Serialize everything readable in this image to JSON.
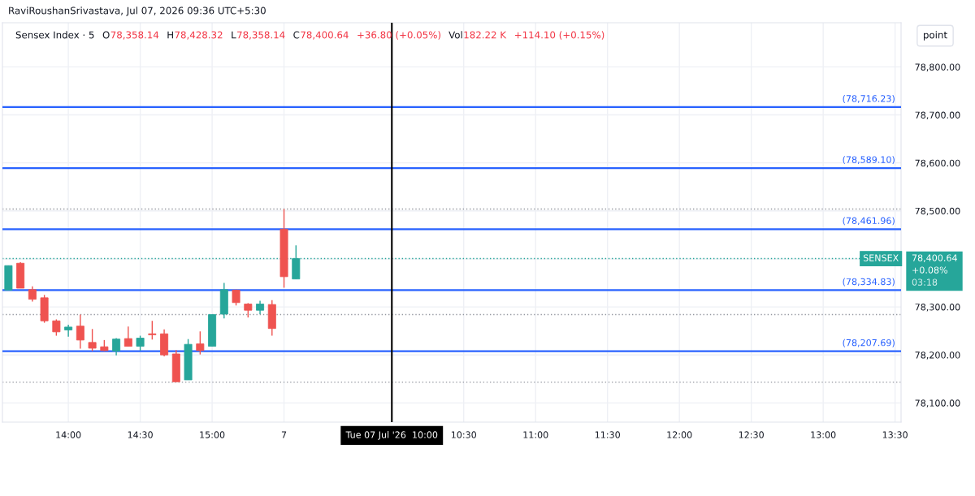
{
  "chart_data": {
    "type": "candlestick",
    "title": "Sensex Index · 5",
    "categories": [
      null,
      null,
      null,
      null,
      null,
      "14:00",
      null,
      null,
      null,
      null,
      null,
      "14:30",
      null,
      null,
      null,
      null,
      null,
      "15:00",
      null,
      null,
      null,
      null,
      null,
      "7",
      null,
      null,
      null,
      null,
      null,
      null,
      null,
      null,
      "Tue 07 Jul '26  10:00",
      null,
      null,
      null,
      null,
      null,
      "10:30",
      null,
      null,
      null,
      null,
      null,
      "11:00",
      null,
      null,
      null,
      null,
      null,
      "11:30",
      null,
      null,
      null,
      null,
      null,
      "12:00",
      null,
      null,
      null,
      null,
      null,
      "12:30",
      null,
      null,
      null,
      null,
      null,
      "13:00",
      null,
      null,
      null,
      null,
      null,
      "13:30"
    ],
    "ohlc": [
      [
        78335,
        78386,
        78335,
        78386
      ],
      [
        78391,
        78393,
        78339,
        78339
      ],
      [
        78336,
        78343,
        78311,
        78316
      ],
      [
        78319,
        78325,
        78267,
        78271
      ],
      [
        78271,
        78274,
        78240,
        78248
      ],
      [
        78252,
        78263,
        78238,
        78258
      ],
      [
        78260,
        78284,
        78213,
        78231
      ],
      [
        78226,
        78254,
        78208,
        78214
      ],
      [
        78217,
        78231,
        78208,
        78209
      ],
      [
        78208,
        78235,
        78199,
        78233
      ],
      [
        78234,
        78259,
        78218,
        78218
      ],
      [
        78218,
        78240,
        78209,
        78235
      ],
      [
        78243,
        78271,
        78232,
        78242
      ],
      [
        78244,
        78253,
        78197,
        78200
      ],
      [
        78202,
        78210,
        78144,
        78144
      ],
      [
        78148,
        78233,
        78148,
        78222
      ],
      [
        78223,
        78249,
        78201,
        78209
      ],
      [
        78218,
        78284,
        78218,
        78284
      ],
      [
        78285,
        78350,
        78276,
        78336
      ],
      [
        78335,
        78336,
        78303,
        78309
      ],
      [
        78306,
        78308,
        78278,
        78293
      ],
      [
        78293,
        78313,
        78285,
        78306
      ],
      [
        78305,
        78314,
        78240,
        78255
      ],
      [
        78462,
        78504,
        78340,
        78363
      ],
      [
        78358.14,
        78428.32,
        78358.14,
        78400.64
      ],
      null,
      null,
      null,
      null,
      null,
      null,
      null,
      null,
      null,
      null,
      null,
      null,
      null,
      null,
      null,
      null,
      null,
      null,
      null,
      null,
      null,
      null,
      null,
      null,
      null,
      null,
      null,
      null,
      null,
      null,
      null,
      null,
      null,
      null,
      null,
      null,
      null,
      null,
      null,
      null,
      null,
      null,
      null,
      null,
      null,
      null,
      null,
      null,
      null,
      null
    ],
    "colors": [
      "#26a69a",
      "#ef5350",
      "#ef5350",
      "#ef5350",
      "#ef5350",
      "#26a69a",
      "#ef5350",
      "#ef5350",
      "#ef5350",
      "#26a69a",
      "#ef5350",
      "#26a69a",
      "#ef5350",
      "#ef5350",
      "#ef5350",
      "#26a69a",
      "#ef5350",
      "#26a69a",
      "#26a69a",
      "#ef5350",
      "#ef5350",
      "#26a69a",
      "#ef5350",
      "#ef5350",
      "#26a69a",
      null,
      null,
      null,
      null,
      null,
      null,
      null,
      null,
      null,
      null,
      null,
      null,
      null,
      null,
      null,
      null,
      null,
      null,
      null,
      null,
      null,
      null,
      null,
      null,
      null,
      null,
      null,
      null,
      null,
      null,
      null,
      null,
      null,
      null,
      null,
      null,
      null,
      null,
      null,
      null,
      null,
      null,
      null,
      null,
      null,
      null,
      null,
      null,
      null,
      null
    ],
    "ylim": [
      78060,
      78892
    ],
    "yticks": [
      {
        "value": 78100,
        "label": "78,100.00"
      },
      {
        "value": 78200,
        "label": "78,200.00"
      },
      {
        "value": 78300,
        "label": "78,300.00"
      },
      {
        "value": 78400,
        "label": null
      },
      {
        "value": 78500,
        "label": "78,500.00"
      },
      {
        "value": 78600,
        "label": "78,600.00"
      },
      {
        "value": 78700,
        "label": "78,700.00"
      },
      {
        "value": 78800,
        "label": "78,800.00"
      }
    ],
    "grid": true,
    "ref_lines": [
      {
        "axis": "y",
        "value": 78716.23,
        "label": "(78,716.23)",
        "color": "#2962ff",
        "line_style": "solid"
      },
      {
        "axis": "y",
        "value": 78589.1,
        "label": "(78,589.10)",
        "color": "#2962ff",
        "line_style": "solid"
      },
      {
        "axis": "y",
        "value": 78461.96,
        "label": "(78,461.96)",
        "color": "#2962ff",
        "line_style": "solid"
      },
      {
        "axis": "y",
        "value": 78334.83,
        "label": "(78,334.83)",
        "color": "#2962ff",
        "line_style": "solid"
      },
      {
        "axis": "y",
        "value": 78207.69,
        "label": "(78,207.69)",
        "color": "#2962ff",
        "line_style": "solid"
      },
      {
        "axis": "y",
        "value": 78400.64,
        "label": "SENSEX",
        "color": "#26a69a",
        "line_style": "dotted"
      },
      {
        "axis": "y",
        "value": 78504,
        "color": "#9598a1",
        "line_style": "dotted"
      },
      {
        "axis": "y",
        "value": 78284,
        "color": "#9598a1",
        "line_style": "dotted"
      },
      {
        "axis": "y",
        "value": 78143,
        "color": "#9598a1",
        "line_style": "dotted"
      },
      {
        "axis": "x",
        "value": "Tue 07 Jul '26  10:00",
        "color": "#000000",
        "line_style": "solid"
      }
    ],
    "annotations": [
      "RaviRoushanSrivastava, Jul 07, 2026 09:36 UTC+5:30",
      "O",
      "78,358.14",
      "H",
      "78,428.32",
      "L",
      "78,358.14",
      "C",
      "78,400.64",
      "+36.80 (+0.05%)",
      "Vol",
      "182.22 K",
      "+114.10 (+0.15%)",
      "point",
      "78,400.64",
      "+0.08%",
      "03:18"
    ]
  }
}
